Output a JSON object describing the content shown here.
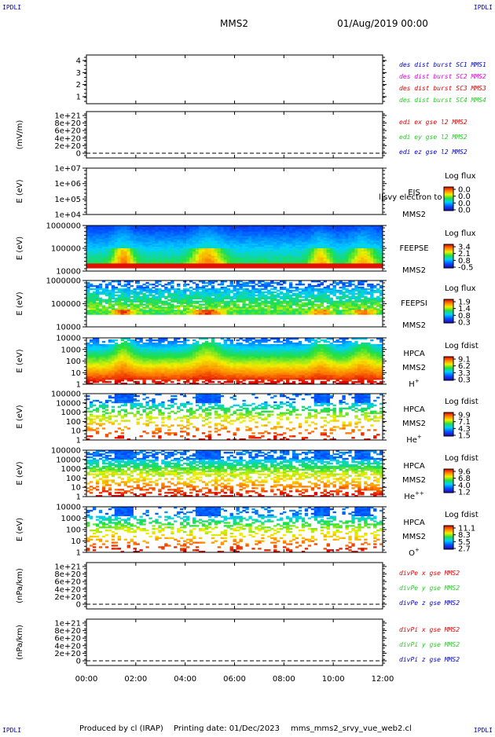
{
  "header": {
    "corner_tl": "IPDLI",
    "corner_tr": "IPDLI",
    "corner_bl": "IPDLI",
    "corner_br": "IPDLI",
    "mission": "MMS2",
    "date": "01/Aug/2019 00:00"
  },
  "footer": {
    "produced_by": "Produced by cl (IRAP)",
    "printing_date": "Printing date: 01/Dec/2023",
    "script_name": "mms_mms2_srvy_vue_web2.cl"
  },
  "colors": {
    "blue": "#0000cc",
    "magenta": "#dd00dd",
    "red": "#dd0000",
    "green": "#22cc22",
    "dark_red": "#cc0000"
  },
  "chart_data": {
    "type": "heatmap",
    "x_axis": {
      "ticks": [
        "00:00",
        "02:00",
        "04:00",
        "06:00",
        "08:00",
        "10:00",
        "12:00"
      ],
      "range_hours": [
        0,
        12
      ]
    },
    "panels": [
      {
        "id": "burst",
        "ylabel": "",
        "yticks": [
          "4",
          "3",
          "2",
          "1"
        ],
        "legend": [
          {
            "text": "des dist burst SC1 MMS1",
            "color": "#0000cc"
          },
          {
            "text": "des dist burst SC2 MMS2",
            "color": "#dd00dd"
          },
          {
            "text": "des dist burst SC3 MMS3",
            "color": "#dd0000"
          },
          {
            "text": "des dist burst SC4 MMS4",
            "color": "#22cc22"
          }
        ]
      },
      {
        "id": "edi",
        "ylabel": "(mV/m)",
        "yticks": [
          "1e+21",
          "8e+20",
          "6e+20",
          "4e+20",
          "2e+20",
          "0"
        ],
        "legend": [
          {
            "text": "edi ex gse l2 MMS2",
            "color": "#dd0000"
          },
          {
            "text": "edi ey gse l2 MMS2",
            "color": "#22cc22"
          },
          {
            "text": "edi ez gse l2 MMS2",
            "color": "#0000cc"
          }
        ]
      },
      {
        "id": "eis",
        "ylabel": "E (eV)",
        "yticks": [
          "1e+07",
          "1e+06",
          "1e+05",
          "1e+04"
        ],
        "right_labels": [
          "EIS",
          "MMS2"
        ],
        "overlay_text": "l|svy electron to",
        "colorbar": {
          "title": "Log flux",
          "ticks": [
            "0.0",
            "0.0",
            "0.0",
            "0.0"
          ]
        }
      },
      {
        "id": "feepse",
        "ylabel": "E (eV)",
        "yticks": [
          "1000000",
          "100000",
          "10000"
        ],
        "right_labels": [
          "FEEPSE",
          "MMS2"
        ],
        "colorbar": {
          "title": "Log flux",
          "ticks": [
            "3.4",
            "2.1",
            "0.8",
            "-0.5"
          ]
        }
      },
      {
        "id": "feepsi",
        "ylabel": "E (eV)",
        "yticks": [
          "1000000",
          "100000",
          "10000"
        ],
        "right_labels": [
          "FEEPSI",
          "MMS2"
        ],
        "colorbar": {
          "title": "Log flux",
          "ticks": [
            "1.9",
            "1.4",
            "0.8",
            "0.3"
          ]
        }
      },
      {
        "id": "hpca_h",
        "ylabel": "E (eV)",
        "yticks": [
          "10000",
          "1000",
          "100",
          "10",
          "1"
        ],
        "right_labels": [
          "HPCA",
          "MMS2",
          "H+"
        ],
        "colorbar": {
          "title": "Log fdist",
          "ticks": [
            "9.1",
            "6.2",
            "3.3",
            "0.3"
          ]
        }
      },
      {
        "id": "hpca_he",
        "ylabel": "E (eV)",
        "yticks": [
          "100000",
          "10000",
          "1000",
          "100",
          "10",
          "1"
        ],
        "right_labels": [
          "HPCA",
          "MMS2",
          "He+"
        ],
        "colorbar": {
          "title": "Log fdist",
          "ticks": [
            "9.9",
            "7.1",
            "4.3",
            "1.5"
          ]
        }
      },
      {
        "id": "hpca_hepp",
        "ylabel": "E (eV)",
        "yticks": [
          "100000",
          "10000",
          "1000",
          "100",
          "10",
          "1"
        ],
        "right_labels": [
          "HPCA",
          "MMS2",
          "He++"
        ],
        "colorbar": {
          "title": "Log fdist",
          "ticks": [
            "9.6",
            "6.8",
            "4.0",
            "1.2"
          ]
        }
      },
      {
        "id": "hpca_o",
        "ylabel": "E (eV)",
        "yticks": [
          "10000",
          "1000",
          "100",
          "10",
          "1"
        ],
        "right_labels": [
          "HPCA",
          "MMS2",
          "O+"
        ],
        "colorbar": {
          "title": "Log fdist",
          "ticks": [
            "11.1",
            "8.3",
            "5.5",
            "2.7"
          ]
        }
      },
      {
        "id": "divpe",
        "ylabel": "(nPa/km)",
        "yticks": [
          "1e+21",
          "8e+20",
          "6e+20",
          "4e+20",
          "2e+20",
          "0"
        ],
        "legend": [
          {
            "text": "divPe x gse MMS2",
            "color": "#dd0000"
          },
          {
            "text": "divPe y gse MMS2",
            "color": "#22cc22"
          },
          {
            "text": "divPe z gse MMS2",
            "color": "#0000cc"
          }
        ]
      },
      {
        "id": "divpi",
        "ylabel": "(nPa/km)",
        "yticks": [
          "1e+21",
          "8e+20",
          "6e+20",
          "4e+20",
          "2e+20",
          "0"
        ],
        "legend": [
          {
            "text": "divPi x gse MMS2",
            "color": "#dd0000"
          },
          {
            "text": "divPi y gse MMS2",
            "color": "#22cc22"
          },
          {
            "text": "divPi z gse MMS2",
            "color": "#0000cc"
          }
        ]
      }
    ]
  }
}
